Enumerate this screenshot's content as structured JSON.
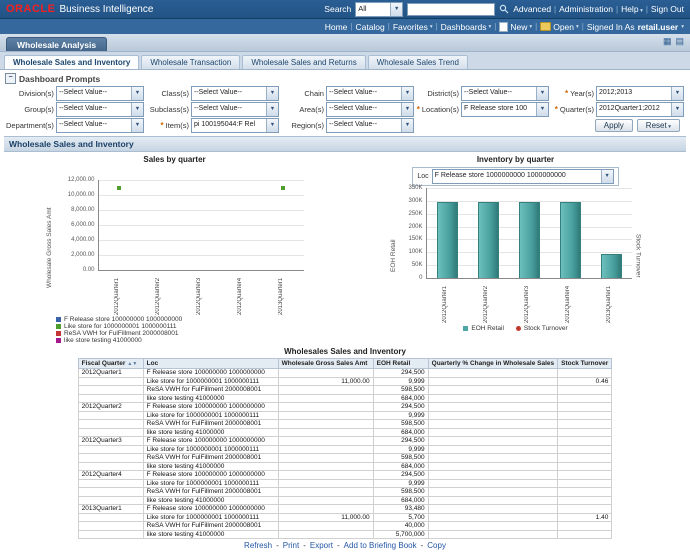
{
  "header": {
    "brand": "ORACLE",
    "product": "Business Intelligence",
    "search_label": "Search",
    "search_scope": "All",
    "search_value": "",
    "links": [
      {
        "label": "Advanced",
        "caret": false
      },
      {
        "label": "Administration",
        "caret": false
      },
      {
        "label": "Help",
        "caret": true
      },
      {
        "label": "Sign Out",
        "caret": false
      }
    ],
    "nav": [
      {
        "label": "Home",
        "caret": false
      },
      {
        "label": "Catalog",
        "caret": false
      },
      {
        "label": "Favorites",
        "caret": true
      },
      {
        "label": "Dashboards",
        "caret": true
      }
    ],
    "nav2": [
      {
        "label": "New",
        "caret": true
      },
      {
        "label": "Open",
        "caret": true
      }
    ],
    "signed_in_label": "Signed In As",
    "user": "retail.user"
  },
  "dashboard": {
    "title": "Wholesale Analysis",
    "tabs": [
      "Wholesale Sales and Inventory",
      "Wholesale Transaction",
      "Wholesale Sales and Returns",
      "Wholesale Sales Trend"
    ],
    "active_tab": 0
  },
  "prompts": {
    "title": "Dashboard Prompts",
    "rows": [
      [
        {
          "label": "Division(s)",
          "value": "--Select Value--",
          "required": false
        },
        {
          "label": "Class(s)",
          "value": "--Select Value--",
          "required": false
        },
        {
          "label": "Chain",
          "value": "--Select Value--",
          "required": false
        },
        {
          "label": "District(s)",
          "value": "--Select Value--",
          "required": false
        },
        {
          "label": "Year(s)",
          "value": "2012;2013",
          "required": true
        }
      ],
      [
        {
          "label": "Group(s)",
          "value": "--Select Value--",
          "required": false
        },
        {
          "label": "Subclass(s)",
          "value": "--Select Value--",
          "required": false
        },
        {
          "label": "Area(s)",
          "value": "--Select Value--",
          "required": false
        },
        {
          "label": "Location(s)",
          "value": "F Release store 100",
          "required": true
        },
        {
          "label": "Quarter(s)",
          "value": "2012Quarter1;2012",
          "required": true
        }
      ],
      [
        {
          "label": "Department(s)",
          "value": "--Select Value--",
          "required": false
        },
        {
          "label": "Item(s)",
          "value": "pi 100195044:F Rel",
          "required": true
        },
        {
          "label": "Region(s)",
          "value": "--Select Value--",
          "required": false
        }
      ]
    ],
    "apply_label": "Apply",
    "reset_label": "Reset"
  },
  "section": {
    "title": "Wholesale Sales and Inventory"
  },
  "chart_data": [
    {
      "type": "scatter",
      "title": "Sales by quarter",
      "ylabel": "Wholesale Gross Sales Amt",
      "ylim": [
        0,
        12000
      ],
      "yticks": [
        "12,000.00",
        "10,000.00",
        "8,000.00",
        "6,000.00",
        "4,000.00",
        "2,000.00",
        "0.00"
      ],
      "categories": [
        "2012Quarter1",
        "2012Quarter2",
        "2012Quarter3",
        "2012Quarter4",
        "2013Quarter1"
      ],
      "series": [
        {
          "name": "F Release store 100000000 1000000000",
          "color": "#3a62a8",
          "values": [
            null,
            null,
            null,
            null,
            null
          ]
        },
        {
          "name": "Like store for 1000000001 1000000111",
          "color": "#4d9e2e",
          "values": [
            11000,
            null,
            null,
            null,
            11000
          ]
        },
        {
          "name": "ReSA VWH for FulFillment 2000008001",
          "color": "#c43535",
          "values": [
            null,
            null,
            null,
            null,
            null
          ]
        },
        {
          "name": "like store testing 41000000",
          "color": "#a21a8e",
          "values": [
            null,
            null,
            null,
            null,
            null
          ]
        }
      ],
      "legend_position": "bottom-left",
      "grid": true
    },
    {
      "type": "bar",
      "title": "Inventory by quarter",
      "loc_label": "Loc",
      "loc_value": "F Release store 1000000000 1000000000",
      "ylabel": "EOH Retail",
      "ylabel_right": "Stock Turnover",
      "ylim": [
        0,
        350000
      ],
      "yticks": [
        "350K",
        "300K",
        "250K",
        "200K",
        "150K",
        "100K",
        "50K",
        "0"
      ],
      "categories": [
        "2012Quarter1",
        "2012Quarter2",
        "2012Quarter3",
        "2012Quarter4",
        "2013Quarter1"
      ],
      "series": [
        {
          "name": "EOH Retail",
          "type": "bar",
          "color": "#4fa7a5",
          "values": [
            294500,
            294500,
            294500,
            294500,
            93480
          ]
        },
        {
          "name": "Stock Turnover",
          "type": "point",
          "color": "#c0392b",
          "values": [
            null,
            null,
            null,
            null,
            null
          ]
        }
      ],
      "legend_position": "bottom",
      "grid": true
    }
  ],
  "table": {
    "title": "Wholesales Sales and Inventory",
    "columns": [
      "Fiscal Quarter",
      "Loc",
      "Wholesale Gross Sales Amt",
      "EOH Retail",
      "Quarterly % Change in Wholesale Sales",
      "Stock Turnover"
    ],
    "rows": [
      [
        "2012Quarter1",
        "F Release store 100000000 1000000000",
        "",
        "294,500",
        "",
        ""
      ],
      [
        "",
        "Like store for 1000000001 1000000111",
        "11,000.00",
        "9,999",
        "",
        "0.46"
      ],
      [
        "",
        "ReSA VWH for FulFillment 2000008001",
        "",
        "598,500",
        "",
        ""
      ],
      [
        "",
        "like store testing 41000000",
        "",
        "684,000",
        "",
        ""
      ],
      [
        "2012Quarter2",
        "F Release store 100000000 1000000000",
        "",
        "294,500",
        "",
        ""
      ],
      [
        "",
        "Like store for 1000000001 1000000111",
        "",
        "9,999",
        "",
        ""
      ],
      [
        "",
        "ReSA VWH for FulFillment 2000008001",
        "",
        "598,500",
        "",
        ""
      ],
      [
        "",
        "like store testing 41000000",
        "",
        "684,000",
        "",
        ""
      ],
      [
        "2012Quarter3",
        "F Release store 100000000 1000000000",
        "",
        "294,500",
        "",
        ""
      ],
      [
        "",
        "Like store for 1000000001 1000000111",
        "",
        "9,999",
        "",
        ""
      ],
      [
        "",
        "ReSA VWH for FulFillment 2000008001",
        "",
        "598,500",
        "",
        ""
      ],
      [
        "",
        "like store testing 41000000",
        "",
        "684,000",
        "",
        ""
      ],
      [
        "2012Quarter4",
        "F Release store 100000000 1000000000",
        "",
        "294,500",
        "",
        ""
      ],
      [
        "",
        "Like store for 1000000001 1000000111",
        "",
        "9,999",
        "",
        ""
      ],
      [
        "",
        "ReSA VWH for FulFillment 2000008001",
        "",
        "598,500",
        "",
        ""
      ],
      [
        "",
        "like store testing 41000000",
        "",
        "684,000",
        "",
        ""
      ],
      [
        "2013Quarter1",
        "F Release store 100000000 1000000000",
        "",
        "93,480",
        "",
        ""
      ],
      [
        "",
        "Like store for 1000000001 1000000111",
        "11,000.00",
        "5,700",
        "",
        "1.40"
      ],
      [
        "",
        "ReSA VWH for FulFillment 2000008001",
        "",
        "40,000",
        "",
        ""
      ],
      [
        "",
        "like store testing 41000000",
        "",
        "5,700,000",
        "",
        ""
      ]
    ]
  },
  "footer": {
    "links": [
      "Refresh",
      "Print",
      "Export",
      "Add to Briefing Book",
      "Copy"
    ]
  }
}
